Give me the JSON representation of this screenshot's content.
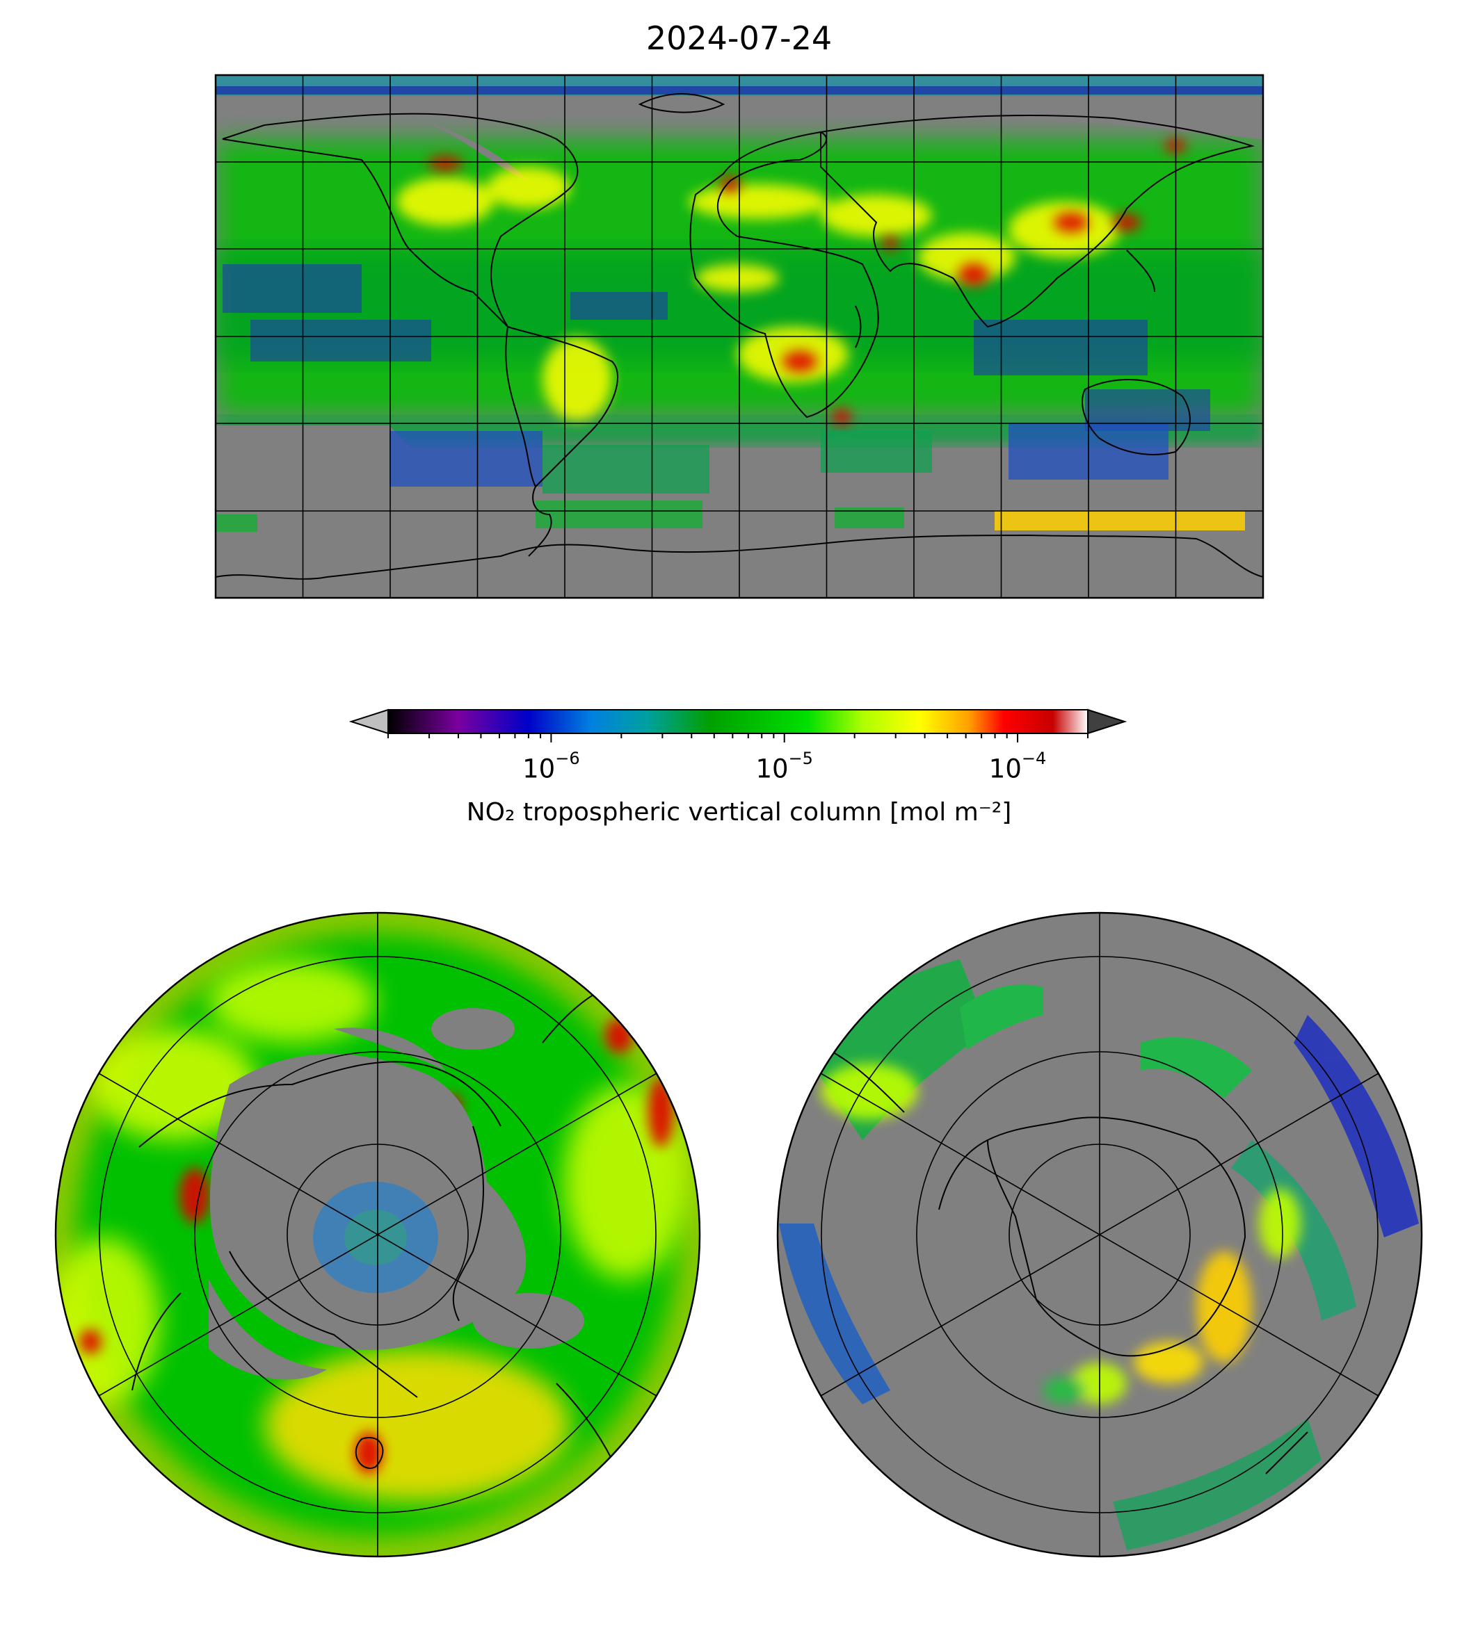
{
  "title": "2024-07-24",
  "colorbar": {
    "label": "NO₂ tropospheric vertical column [mol m⁻²]",
    "scale": "log",
    "range": [
      2e-07,
      0.0002
    ],
    "extend": "both",
    "major_ticks": [
      {
        "value": 1e-06,
        "base": "10",
        "exp": "−6"
      },
      {
        "value": 1e-05,
        "base": "10",
        "exp": "−5"
      },
      {
        "value": 0.0001,
        "base": "10",
        "exp": "−4"
      }
    ],
    "colors": [
      "#000000",
      "#7a00a0",
      "#0000c8",
      "#0080e0",
      "#00a0a0",
      "#00a000",
      "#00e000",
      "#b0ff00",
      "#ffff00",
      "#ffa000",
      "#ff0000",
      "#c80000",
      "#ffffff"
    ],
    "under_color": "#c0c0c0",
    "over_color": "#404040"
  },
  "maps": [
    {
      "name": "global",
      "projection": "plate-carree",
      "gridlines": true,
      "background": "#808080"
    },
    {
      "name": "north-polar",
      "projection": "north-polar-stereographic",
      "gridlines": true,
      "background": "#808080"
    },
    {
      "name": "south-polar",
      "projection": "south-polar-stereographic",
      "gridlines": true,
      "background": "#808080"
    }
  ]
}
